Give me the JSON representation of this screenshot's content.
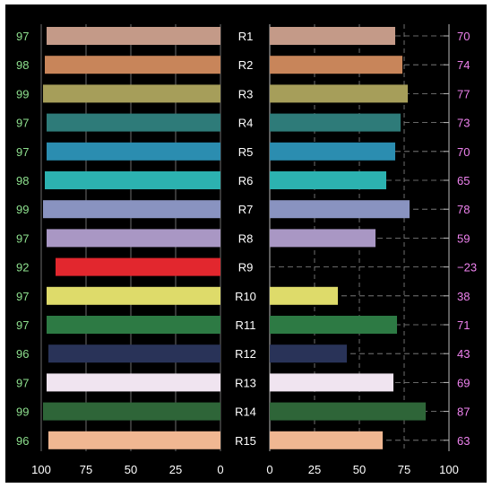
{
  "chart_data": {
    "type": "bar",
    "orientation": "horizontal-back-to-back",
    "categories": [
      "R1",
      "R2",
      "R3",
      "R4",
      "R5",
      "R6",
      "R7",
      "R8",
      "R9",
      "R10",
      "R11",
      "R12",
      "R13",
      "R14",
      "R15"
    ],
    "series": [
      {
        "values": [
          97,
          98,
          99,
          97,
          97,
          98,
          99,
          97,
          92,
          97,
          97,
          96,
          97,
          99,
          96
        ],
        "axis": "left",
        "xlim": [
          100,
          0
        ]
      },
      {
        "values": [
          70,
          74,
          77,
          73,
          70,
          65,
          78,
          59,
          -23,
          38,
          71,
          43,
          69,
          87,
          63
        ],
        "axis": "right",
        "xlim": [
          0,
          100
        ]
      }
    ],
    "left_labels": [
      "97",
      "98",
      "99",
      "97",
      "97",
      "98",
      "99",
      "97",
      "92",
      "97",
      "97",
      "96",
      "97",
      "99",
      "96"
    ],
    "right_labels": [
      "70",
      "74",
      "77",
      "73",
      "70",
      "65",
      "78",
      "59",
      "−23",
      "38",
      "71",
      "43",
      "69",
      "87",
      "63"
    ],
    "bar_colors": [
      "#c49a88",
      "#c8855a",
      "#a69e5a",
      "#2e7b79",
      "#2b8db0",
      "#2cb2b0",
      "#8993c0",
      "#a997c4",
      "#e2272e",
      "#dedb6a",
      "#2d7a44",
      "#293358",
      "#f0e4f0",
      "#2e6538",
      "#f0b792"
    ],
    "left_ticks": [
      "100",
      "75",
      "50",
      "25",
      "0"
    ],
    "right_ticks": [
      "0",
      "25",
      "50",
      "75",
      "100"
    ],
    "grid": true,
    "colors": {
      "background": "#000000",
      "left_label": "#8ee08e",
      "right_label": "#ee82ee",
      "category_label": "#ffffff",
      "tick_label": "#ffffff"
    }
  }
}
